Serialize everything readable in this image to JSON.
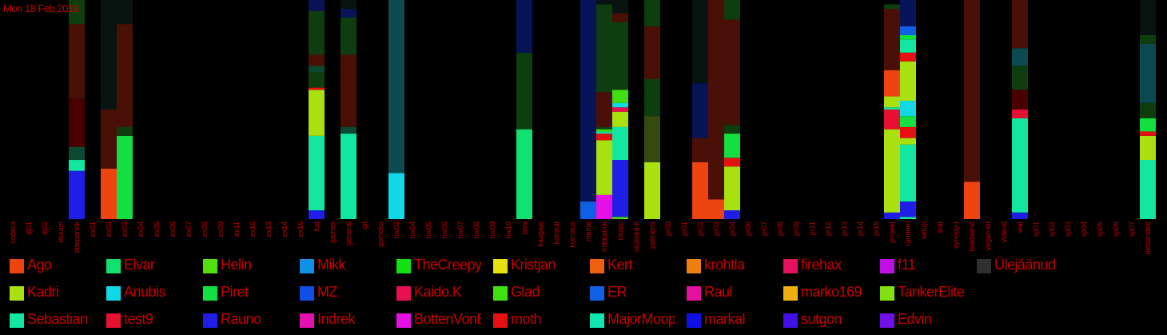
{
  "date_label": "Mon 18 Feb 2019",
  "chart_data": {
    "type": "bar",
    "stacked": true,
    "title": "",
    "ylim": [
      0,
      100
    ],
    "categories": [
      "codera",
      "dj01",
      "dj02",
      "eksam",
      "ettepanek",
      "ex01",
      "ex02",
      "ex03",
      "ex04",
      "ex05",
      "ex06",
      "ex07",
      "ex08",
      "ex09",
      "ex11",
      "ex12",
      "ex13",
      "ex14",
      "ex15",
      "fud",
      "games",
      "general",
      "git",
      "gomoku",
      "hw03",
      "hw04",
      "hw05",
      "hw06",
      "hw07",
      "hw08",
      "hw09",
      "hw10",
      "java",
      "kaagaje",
      "konsult",
      "korrutus",
      "meme",
      "mitteainik",
      "music",
      "olulised-fi",
      "palmemi",
      "pr00",
      "pr01",
      "pr02",
      "pr03",
      "pr04",
      "pr06",
      "pr07",
      "pr08",
      "pr09",
      "pr11",
      "pr12",
      "pr13",
      "pr14",
      "pr15",
      "projekt",
      "random",
      "setup",
      "stat",
      "synopy-t",
      "teadaand",
      "vegan-tiit",
      "videod",
      "wat",
      "xp01",
      "xp02",
      "xp03",
      "xp04",
      "xp05",
      "xp06",
      "xp07",
      "ülesanded"
    ],
    "bars": [
      {
        "category": "ettepanek",
        "segments": [
          {
            "c": "#1e1ee6",
            "v": 22
          },
          {
            "c": "#12e6a0",
            "v": 5
          },
          {
            "c": "#0a4a30",
            "v": 6
          },
          {
            "c": "#4a0000",
            "v": 22
          },
          {
            "c": "#4a1008",
            "v": 34
          },
          {
            "c": "#0e3e10",
            "v": 11
          }
        ]
      },
      {
        "category": "ex02",
        "segments": [
          {
            "c": "#ee4410",
            "v": 23
          },
          {
            "c": "#4a1008",
            "v": 27
          },
          {
            "c": "#081410",
            "v": 50
          }
        ]
      },
      {
        "category": "ex03",
        "segments": [
          {
            "c": "#12e040",
            "v": 38
          },
          {
            "c": "#0e3e10",
            "v": 4
          },
          {
            "c": "#4a1008",
            "v": 47
          },
          {
            "c": "#081410",
            "v": 11
          }
        ]
      },
      {
        "category": "fud",
        "segments": [
          {
            "c": "#1e1ee6",
            "v": 4
          },
          {
            "c": "#12e6a0",
            "v": 34
          },
          {
            "c": "#a8e010",
            "v": 21
          },
          {
            "c": "#e61010",
            "v": 1
          },
          {
            "c": "#0e3e10",
            "v": 7
          },
          {
            "c": "#0a4a30",
            "v": 3
          },
          {
            "c": "#4a1008",
            "v": 5
          },
          {
            "c": "#0e3e10",
            "v": 20
          },
          {
            "c": "#081458",
            "v": 5
          }
        ]
      },
      {
        "category": "general",
        "segments": [
          {
            "c": "#12e6a0",
            "v": 39
          },
          {
            "c": "#0a4a30",
            "v": 3
          },
          {
            "c": "#4a1008",
            "v": 33
          },
          {
            "c": "#0e3e10",
            "v": 17
          },
          {
            "c": "#081458",
            "v": 4
          },
          {
            "c": "#081410",
            "v": 4
          }
        ]
      },
      {
        "category": "hw03",
        "segments": [
          {
            "c": "#10d8e6",
            "v": 21
          },
          {
            "c": "#0a4a50",
            "v": 79
          }
        ]
      },
      {
        "category": "java",
        "segments": [
          {
            "c": "#12e070",
            "v": 41
          },
          {
            "c": "#0e3e10",
            "v": 35
          },
          {
            "c": "#081458",
            "v": 24
          }
        ]
      },
      {
        "category": "meme",
        "segments": [
          {
            "c": "#1060e6",
            "v": 8
          },
          {
            "c": "#081458",
            "v": 92
          }
        ]
      },
      {
        "category": "mitteainik",
        "segments": [
          {
            "c": "#e610e6",
            "v": 11
          },
          {
            "c": "#a8e010",
            "v": 25
          },
          {
            "c": "#e61010",
            "v": 3
          },
          {
            "c": "#12e6a0",
            "v": 1
          },
          {
            "c": "#40e010",
            "v": 1
          },
          {
            "c": "#0e3e10",
            "v": 1
          },
          {
            "c": "#4a1008",
            "v": 16
          },
          {
            "c": "#0e3e10",
            "v": 40
          },
          {
            "c": "#081410",
            "v": 3
          }
        ]
      },
      {
        "category": "music",
        "segments": [
          {
            "c": "#40e010",
            "v": 1
          },
          {
            "c": "#1e1ee6",
            "v": 26
          },
          {
            "c": "#12e6a0",
            "v": 15
          },
          {
            "c": "#a8e010",
            "v": 7
          },
          {
            "c": "#e61050",
            "v": 2
          },
          {
            "c": "#10d8e6",
            "v": 2
          },
          {
            "c": "#40e010",
            "v": 6
          },
          {
            "c": "#0e3e10",
            "v": 31
          },
          {
            "c": "#4a1008",
            "v": 4
          },
          {
            "c": "#081410",
            "v": 6
          }
        ]
      },
      {
        "category": "palmemi",
        "segments": [
          {
            "c": "#a8e010",
            "v": 26
          },
          {
            "c": "#344a10",
            "v": 21
          },
          {
            "c": "#0e3e10",
            "v": 17
          },
          {
            "c": "#4a1008",
            "v": 24
          },
          {
            "c": "#0e3e10",
            "v": 12
          }
        ]
      },
      {
        "category": "pr02",
        "segments": [
          {
            "c": "#ee4410",
            "v": 26
          },
          {
            "c": "#4a1008",
            "v": 11
          },
          {
            "c": "#081458",
            "v": 25
          },
          {
            "c": "#081410",
            "v": 38
          }
        ]
      },
      {
        "category": "pr03",
        "segments": [
          {
            "c": "#ee4410",
            "v": 9
          },
          {
            "c": "#4a1008",
            "v": 91
          }
        ]
      },
      {
        "category": "pr04",
        "segments": [
          {
            "c": "#1e1ee6",
            "v": 4
          },
          {
            "c": "#a8e010",
            "v": 20
          },
          {
            "c": "#e61010",
            "v": 4
          },
          {
            "c": "#12e040",
            "v": 11
          },
          {
            "c": "#0e3e10",
            "v": 4
          },
          {
            "c": "#4a1008",
            "v": 48
          },
          {
            "c": "#0e3e10",
            "v": 9
          }
        ]
      },
      {
        "category": "projekt",
        "segments": [
          {
            "c": "#1e1ee6",
            "v": 3
          },
          {
            "c": "#a8e010",
            "v": 38
          },
          {
            "c": "#e61030",
            "v": 9
          },
          {
            "c": "#12e6a0",
            "v": 1
          },
          {
            "c": "#a8e010",
            "v": 5
          },
          {
            "c": "#ee4410",
            "v": 12
          },
          {
            "c": "#4a1008",
            "v": 28
          },
          {
            "c": "#0e3e10",
            "v": 2
          }
        ]
      },
      {
        "category": "random",
        "segments": [
          {
            "c": "#12e6a0",
            "v": 1
          },
          {
            "c": "#1e1ee6",
            "v": 7
          },
          {
            "c": "#12e6a0",
            "v": 26
          },
          {
            "c": "#a8e010",
            "v": 3
          },
          {
            "c": "#e61010",
            "v": 5
          },
          {
            "c": "#12e040",
            "v": 5
          },
          {
            "c": "#10d8e6",
            "v": 7
          },
          {
            "c": "#a8e010",
            "v": 18
          },
          {
            "c": "#e61010",
            "v": 4
          },
          {
            "c": "#12e6a0",
            "v": 6
          },
          {
            "c": "#12e040",
            "v": 2
          },
          {
            "c": "#1060e6",
            "v": 4
          },
          {
            "c": "#081458",
            "v": 12
          }
        ]
      },
      {
        "category": "teadaand",
        "segments": [
          {
            "c": "#ee4410",
            "v": 17
          },
          {
            "c": "#4a1008",
            "v": 83
          }
        ]
      },
      {
        "category": "wat",
        "segments": [
          {
            "c": "#1e1ee6",
            "v": 3
          },
          {
            "c": "#12e6a0",
            "v": 43
          },
          {
            "c": "#e61030",
            "v": 4
          },
          {
            "c": "#4a0000",
            "v": 9
          },
          {
            "c": "#0e3e10",
            "v": 11
          },
          {
            "c": "#0a4a50",
            "v": 8
          },
          {
            "c": "#4a1008",
            "v": 22
          }
        ]
      },
      {
        "category": "ülesanded",
        "segments": [
          {
            "c": "#12e6a0",
            "v": 27
          },
          {
            "c": "#a8e010",
            "v": 11
          },
          {
            "c": "#e61010",
            "v": 2
          },
          {
            "c": "#12e040",
            "v": 6
          },
          {
            "c": "#0e3e10",
            "v": 7
          },
          {
            "c": "#0a4a50",
            "v": 27
          },
          {
            "c": "#0e3e10",
            "v": 4
          },
          {
            "c": "#081410",
            "v": 16
          }
        ]
      }
    ],
    "legend_position": "bottom",
    "legend": [
      {
        "name": "Ago",
        "color": "#ee4410"
      },
      {
        "name": "Kadri",
        "color": "#a8e010"
      },
      {
        "name": "Sebastian",
        "color": "#12e6a0"
      },
      {
        "name": "Elvar",
        "color": "#12e070"
      },
      {
        "name": "Anubis",
        "color": "#10d8e6"
      },
      {
        "name": "test9",
        "color": "#e61030"
      },
      {
        "name": "Helin",
        "color": "#50e010"
      },
      {
        "name": "Piret",
        "color": "#12e040"
      },
      {
        "name": "Rauno",
        "color": "#1e1ee6"
      },
      {
        "name": "Mikk",
        "color": "#1090e6"
      },
      {
        "name": "MZ",
        "color": "#1050e6"
      },
      {
        "name": "Indrek",
        "color": "#e610b0"
      },
      {
        "name": "TheCreepySh",
        "color": "#12e010"
      },
      {
        "name": "Kaido.K",
        "color": "#e61050"
      },
      {
        "name": "BottenVonBot",
        "color": "#e610e6"
      },
      {
        "name": "Kristjan",
        "color": "#e6e010"
      },
      {
        "name": "Glad",
        "color": "#40e010"
      },
      {
        "name": "moth",
        "color": "#e61010"
      },
      {
        "name": "Kert",
        "color": "#ee6010"
      },
      {
        "name": "ER",
        "color": "#1060e6"
      },
      {
        "name": "MajorMoopsy",
        "color": "#12e6b0"
      },
      {
        "name": "krohtla",
        "color": "#ee8010"
      },
      {
        "name": "Raul",
        "color": "#e610a0"
      },
      {
        "name": "markal",
        "color": "#1010e6"
      },
      {
        "name": "firehax",
        "color": "#e61060"
      },
      {
        "name": "marko169",
        "color": "#eeb010"
      },
      {
        "name": "sutgon",
        "color": "#4010e6"
      },
      {
        "name": "f11",
        "color": "#c010e6"
      },
      {
        "name": "TankerElite",
        "color": "#80e010"
      },
      {
        "name": "Edvin",
        "color": "#7010e6"
      },
      {
        "name": "Ülejäänud",
        "color": "#303030"
      }
    ]
  }
}
